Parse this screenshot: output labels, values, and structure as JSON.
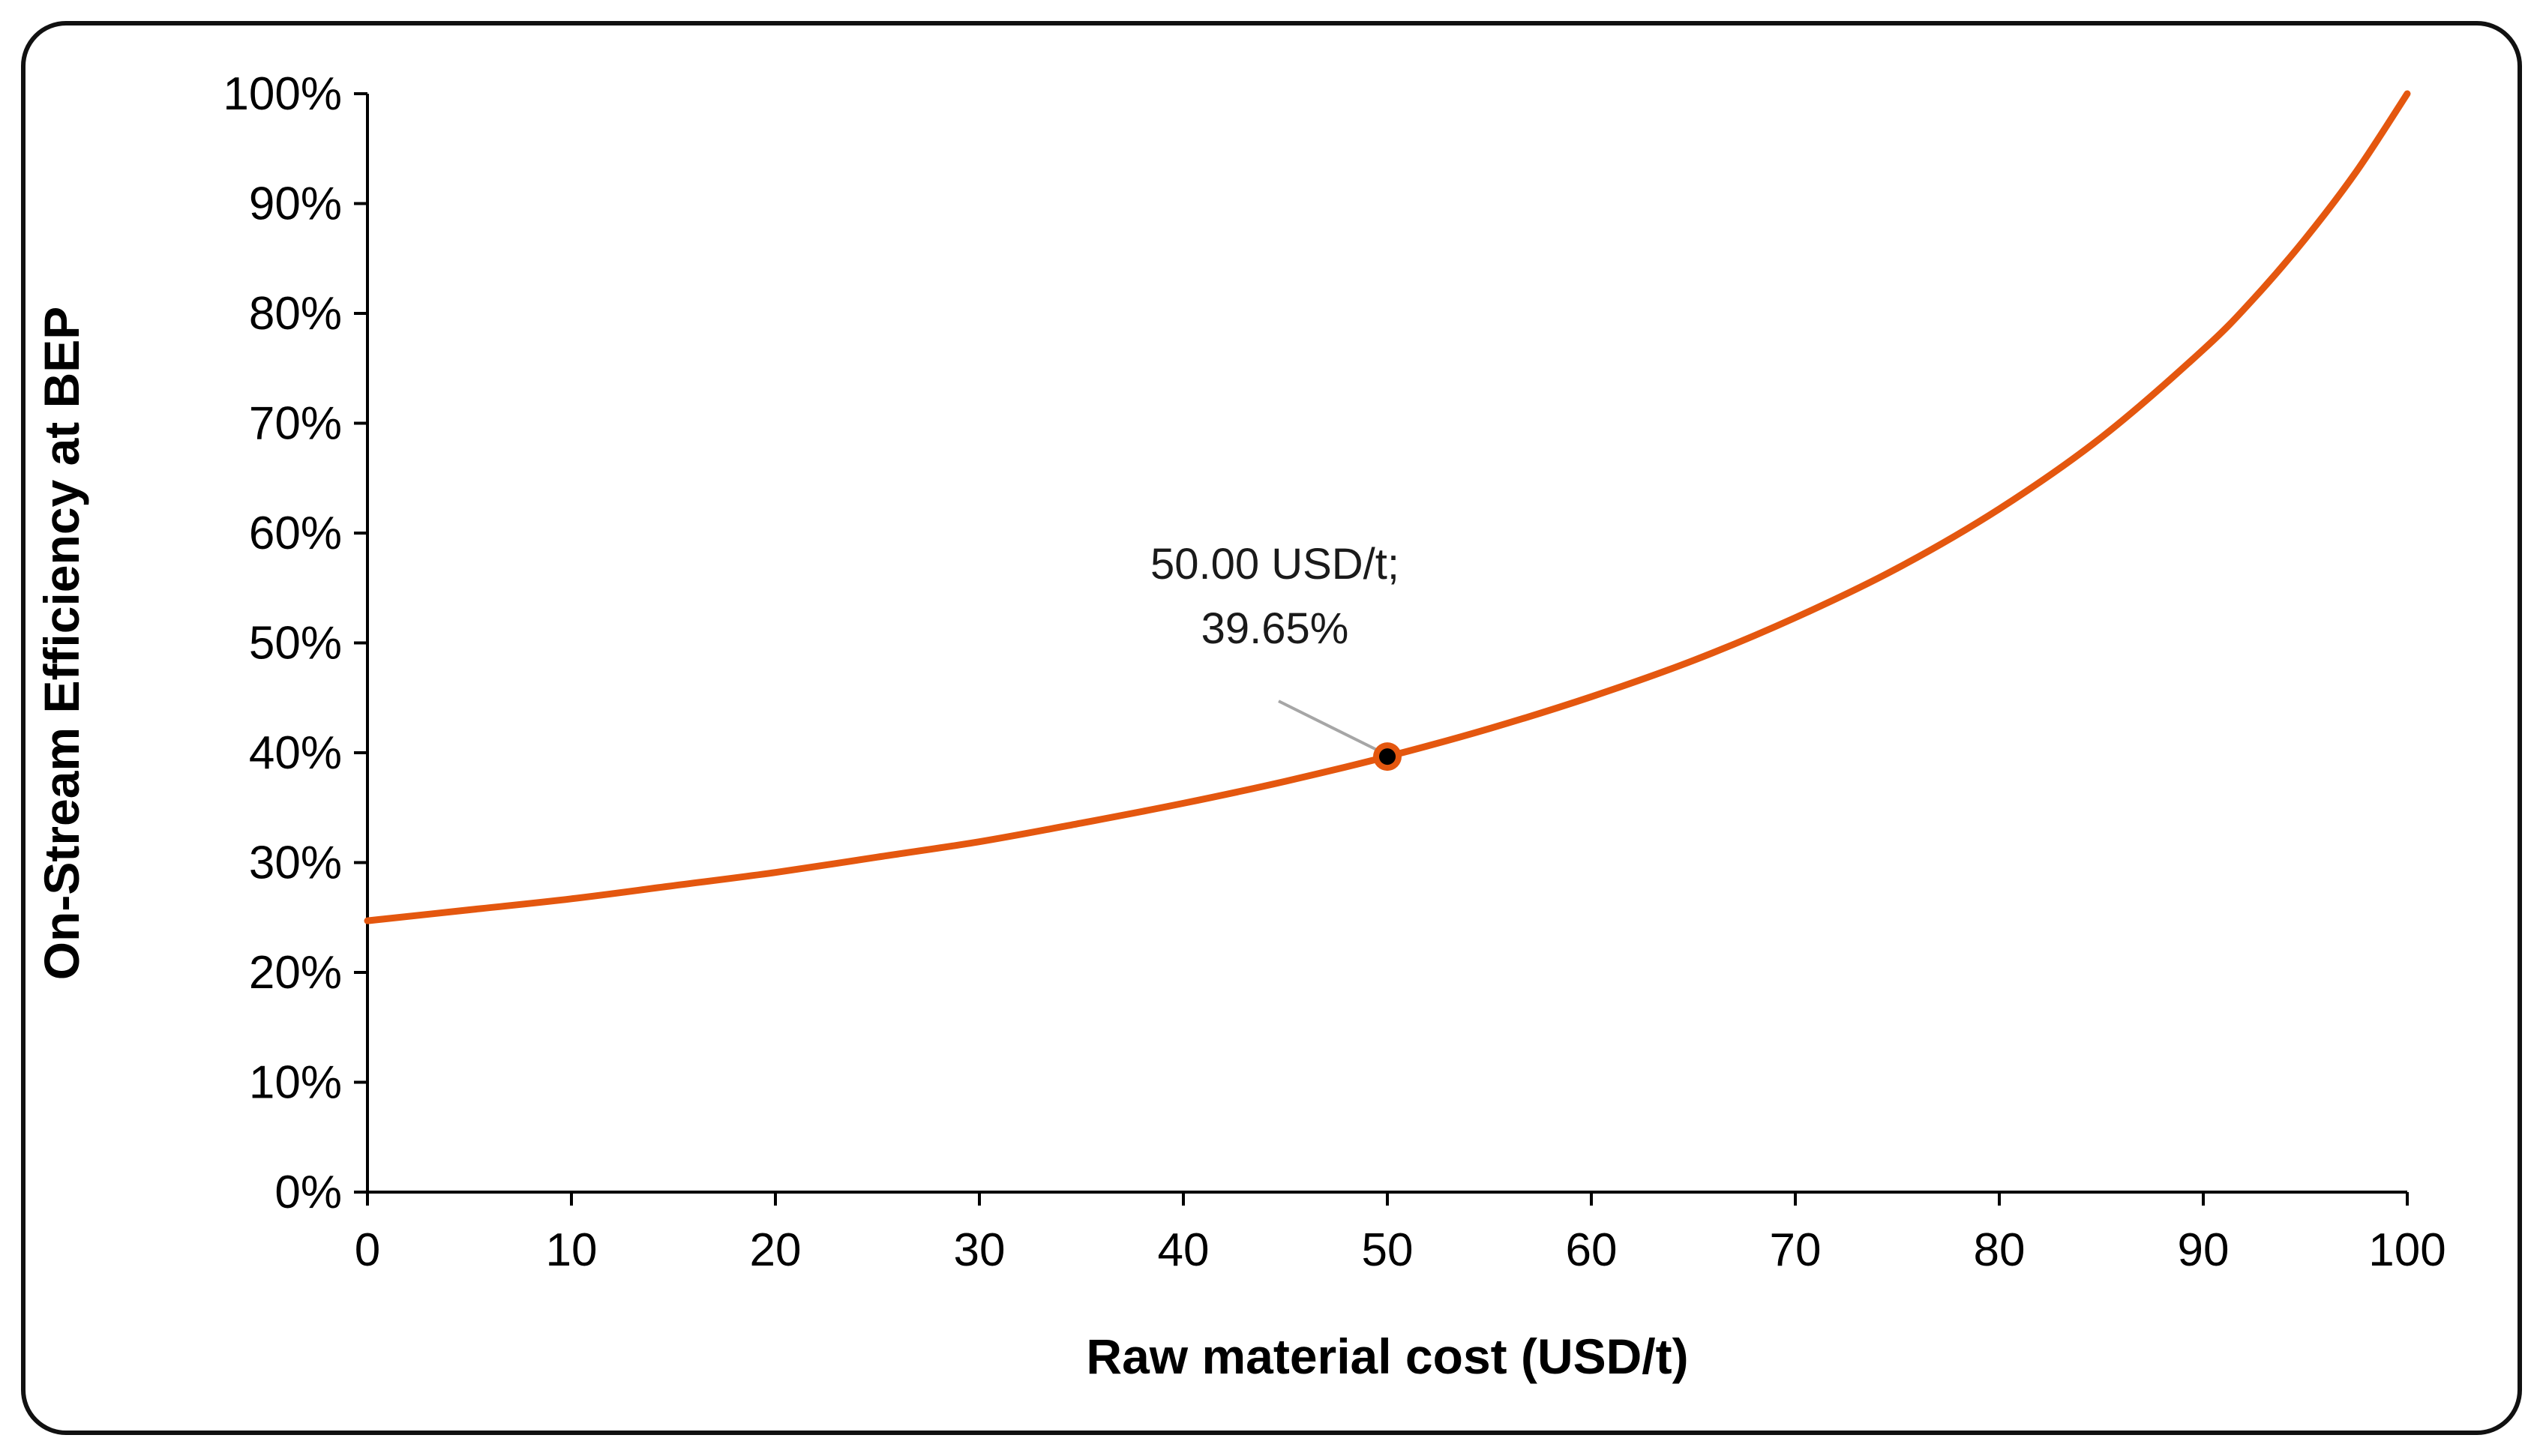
{
  "chart_data": {
    "type": "line",
    "title": "",
    "xlabel": "Raw material cost (USD/t)",
    "ylabel": "On-Stream Efficiency at BEP",
    "xlim": [
      0,
      100
    ],
    "ylim": [
      0,
      100
    ],
    "grid": false,
    "legend": "none",
    "series": [
      {
        "name": "On-Stream Efficiency at BEP",
        "color": "#E4570F",
        "x": [
          0,
          5,
          10,
          15,
          20,
          25,
          30,
          35,
          40,
          45,
          50,
          55,
          60,
          65,
          70,
          75,
          80,
          85,
          90,
          92.5,
          95,
          97.5,
          100
        ],
        "y": [
          24.7,
          25.7,
          26.7,
          27.9,
          29.1,
          30.5,
          31.9,
          33.6,
          35.4,
          37.4,
          39.65,
          42.2,
          45.1,
          48.4,
          52.3,
          56.8,
          62.2,
          68.7,
          76.7,
          81.4,
          86.8,
          92.9,
          100
        ]
      }
    ],
    "x_ticks": {
      "values": [
        0,
        10,
        20,
        30,
        40,
        50,
        60,
        70,
        80,
        90,
        100
      ],
      "labels": [
        "0",
        "10",
        "20",
        "30",
        "40",
        "50",
        "60",
        "70",
        "80",
        "90",
        "100"
      ]
    },
    "y_ticks": {
      "values": [
        0,
        10,
        20,
        30,
        40,
        50,
        60,
        70,
        80,
        90,
        100
      ],
      "labels": [
        "0%",
        "10%",
        "20%",
        "30%",
        "40%",
        "50%",
        "60%",
        "70%",
        "80%",
        "90%",
        "100%"
      ]
    },
    "annotation": {
      "x": 50,
      "y": 39.65,
      "line1": "50.00 USD/t;",
      "line2": "39.65%",
      "marker_color": "#000000",
      "leader_color": "#A6A6A6"
    }
  }
}
